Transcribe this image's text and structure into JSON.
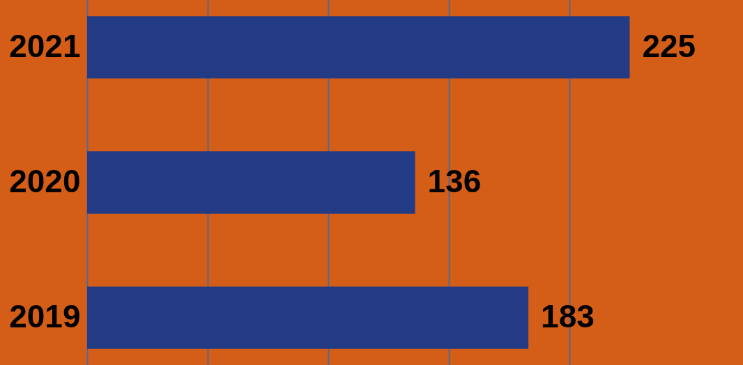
{
  "chart_data": {
    "type": "bar",
    "orientation": "horizontal",
    "categories": [
      "2021",
      "2020",
      "2019"
    ],
    "values": [
      225,
      136,
      183
    ],
    "color": "#233a85",
    "xlim": [
      0,
      272
    ],
    "xticks": [
      {
        "value": 0,
        "label": null
      },
      {
        "value": 50,
        "label": null
      },
      {
        "value": 100,
        "label": null
      },
      {
        "value": 150,
        "label": null
      },
      {
        "value": 200,
        "label": null
      }
    ],
    "grid": "x",
    "tick_labels": "y",
    "data_labels": true
  }
}
